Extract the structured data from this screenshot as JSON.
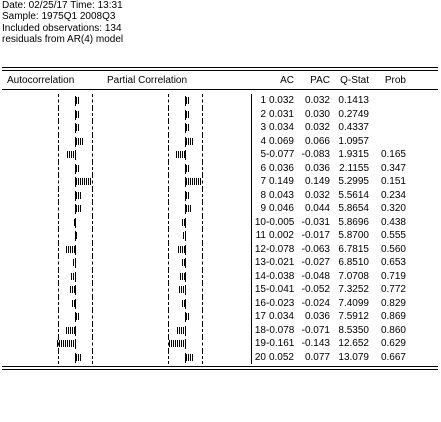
{
  "header": {
    "line1": "Date: 02/25/17   Time: 13:31",
    "line2": "Sample: 1975Q1 2008Q3",
    "line3": "Included observations: 134",
    "line4": "residuals from AR(4) model"
  },
  "columns": {
    "autocorrelation": "Autocorrelation",
    "partial_correlation": "Partial Correlation",
    "ac": "AC",
    "pac": "PAC",
    "qstat": "Q-Stat",
    "prob": "Prob"
  },
  "chart_data": {
    "type": "table",
    "rows": [
      {
        "lag": "1",
        "ac": "0.032",
        "pac": "0.032",
        "q": "0.1413",
        "prob": ""
      },
      {
        "lag": "2",
        "ac": "0.031",
        "pac": "0.030",
        "q": "0.2749",
        "prob": ""
      },
      {
        "lag": "3",
        "ac": "0.034",
        "pac": "0.032",
        "q": "0.4337",
        "prob": ""
      },
      {
        "lag": "4",
        "ac": "0.069",
        "pac": "0.066",
        "q": "1.0957",
        "prob": ""
      },
      {
        "lag": "5",
        "ac": "-0.077",
        "pac": "-0.083",
        "q": "1.9315",
        "prob": "0.165"
      },
      {
        "lag": "6",
        "ac": "0.036",
        "pac": "0.036",
        "q": "2.1155",
        "prob": "0.347"
      },
      {
        "lag": "7",
        "ac": "0.149",
        "pac": "0.149",
        "q": "5.2995",
        "prob": "0.151"
      },
      {
        "lag": "8",
        "ac": "0.043",
        "pac": "0.032",
        "q": "5.5614",
        "prob": "0.234"
      },
      {
        "lag": "9",
        "ac": "0.046",
        "pac": "0.044",
        "q": "5.8654",
        "prob": "0.320"
      },
      {
        "lag": "10",
        "ac": "-0.005",
        "pac": "-0.031",
        "q": "5.8696",
        "prob": "0.438"
      },
      {
        "lag": "11",
        "ac": "0.002",
        "pac": "-0.017",
        "q": "5.8700",
        "prob": "0.555"
      },
      {
        "lag": "12",
        "ac": "-0.078",
        "pac": "-0.063",
        "q": "6.7815",
        "prob": "0.560"
      },
      {
        "lag": "13",
        "ac": "-0.021",
        "pac": "-0.027",
        "q": "6.8510",
        "prob": "0.653"
      },
      {
        "lag": "14",
        "ac": "-0.038",
        "pac": "-0.048",
        "q": "7.0708",
        "prob": "0.719"
      },
      {
        "lag": "15",
        "ac": "-0.041",
        "pac": "-0.052",
        "q": "7.3252",
        "prob": "0.772"
      },
      {
        "lag": "16",
        "ac": "-0.023",
        "pac": "-0.024",
        "q": "7.4099",
        "prob": "0.829"
      },
      {
        "lag": "17",
        "ac": "0.034",
        "pac": "0.036",
        "q": "7.5912",
        "prob": "0.869"
      },
      {
        "lag": "18",
        "ac": "-0.078",
        "pac": "-0.071",
        "q": "8.5350",
        "prob": "0.860"
      },
      {
        "lag": "19",
        "ac": "-0.161",
        "pac": "-0.143",
        "q": "12.652",
        "prob": "0.629"
      },
      {
        "lag": "20",
        "ac": "0.052",
        "pac": "0.077",
        "q": "13.079",
        "prob": "0.667"
      }
    ]
  }
}
